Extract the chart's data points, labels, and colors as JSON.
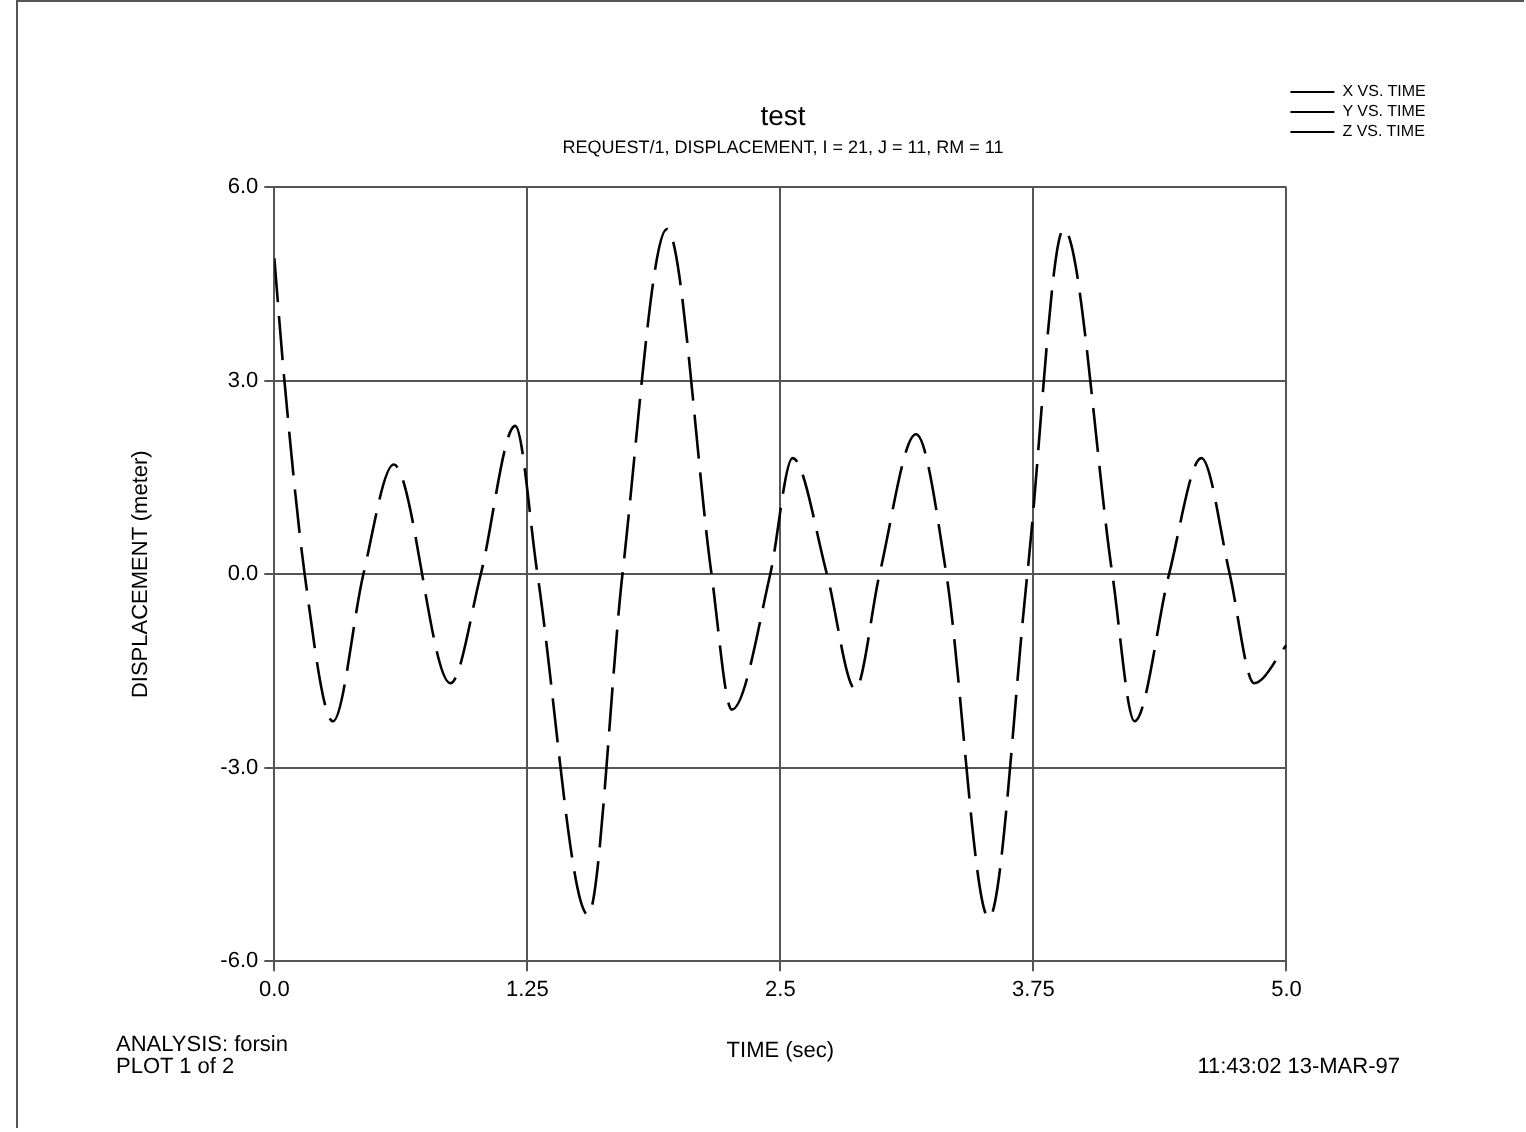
{
  "chart_data": {
    "type": "line",
    "title": "test",
    "subtitle": "REQUEST/1, DISPLACEMENT, I = 21, J = 11, RM = 11",
    "xlabel": "TIME (sec)",
    "ylabel": "DISPLACEMENT (meter)",
    "xlim": [
      0,
      5
    ],
    "xticks": [
      {
        "value": 0,
        "label": "0.0"
      },
      1.25,
      2.5,
      3.75,
      {
        "value": 5,
        "label": "5.0"
      }
    ],
    "ylim": [
      -6,
      6
    ],
    "yticks": [
      {
        "value": -6,
        "label": "-6.0"
      },
      {
        "value": -3,
        "label": "-3.0"
      },
      {
        "value": 0,
        "label": "0.0"
      },
      {
        "value": 3,
        "label": "3.0"
      },
      {
        "value": 6,
        "label": "6.0"
      }
    ],
    "x": [
      0,
      0.05,
      0.15,
      0.29,
      0.44,
      0.59,
      0.87,
      1.02,
      1.19,
      1.3,
      1.55,
      1.72,
      1.94,
      2.16,
      2.26,
      2.45,
      2.56,
      2.73,
      2.87,
      2.99,
      3.17,
      3.32,
      3.53,
      3.72,
      3.9,
      4.14,
      4.25,
      4.42,
      4.58,
      4.72,
      4.84,
      5.0
    ],
    "series": [
      {
        "name": "X VS. TIME",
        "color": "#000000",
        "values": [
          4.9,
          3.0,
          0,
          -2.28,
          0,
          1.7,
          -1.69,
          0,
          2.3,
          0,
          -5.28,
          0,
          5.35,
          0,
          -2.1,
          0,
          1.8,
          0,
          -1.78,
          0,
          2.17,
          0,
          -5.33,
          0,
          5.35,
          0,
          -2.28,
          0,
          1.8,
          0,
          -1.69,
          -1.1
        ]
      },
      {
        "name": "Y VS. TIME",
        "color": "#000000",
        "values": [
          null,
          null,
          null,
          null,
          null,
          null,
          null,
          null,
          null,
          null,
          null,
          null,
          null,
          null,
          null,
          null,
          null,
          null,
          null,
          null,
          null,
          null,
          null,
          null,
          null,
          null,
          null,
          null,
          null,
          null,
          null,
          null
        ]
      },
      {
        "name": "Z VS. TIME",
        "color": "#000000",
        "values": [
          null,
          null,
          null,
          null,
          null,
          null,
          null,
          null,
          null,
          null,
          null,
          null,
          null,
          null,
          null,
          null,
          null,
          null,
          null,
          null,
          null,
          null,
          null,
          null,
          null,
          null,
          null,
          null,
          null,
          null,
          null,
          null
        ]
      }
    ],
    "grid": true,
    "legend": "top right",
    "marker": "none",
    "line_style": "dashed",
    "annotations": [
      "ANALYSIS: forsin",
      "PLOT 1 of 2",
      "11:43:02 13-MAR-97"
    ]
  }
}
